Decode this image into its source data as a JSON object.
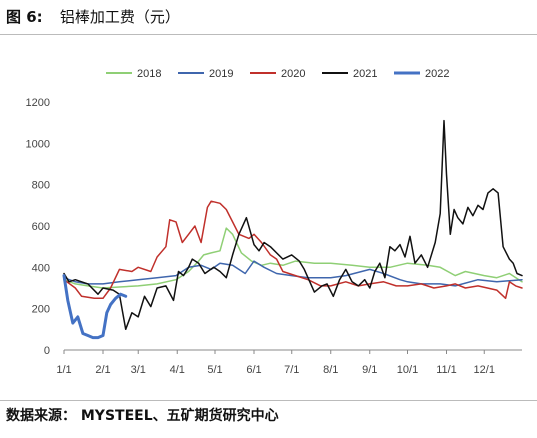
{
  "figure": {
    "label": "图 6:",
    "title": "铝棒加工费（元）",
    "source": "数据来源： MYSTEEL、五矿期货研究中心"
  },
  "chart_data": {
    "type": "line",
    "title": "铝棒加工费（元）",
    "xlabel": "",
    "ylabel": "",
    "ylim": [
      0,
      1200
    ],
    "yticks": [
      0,
      200,
      400,
      600,
      800,
      1000,
      1200
    ],
    "xlim": [
      1,
      365
    ],
    "xticks": [
      {
        "label": "1/1",
        "day": 1
      },
      {
        "label": "2/1",
        "day": 32
      },
      {
        "label": "3/1",
        "day": 60
      },
      {
        "label": "4/1",
        "day": 91
      },
      {
        "label": "5/1",
        "day": 121
      },
      {
        "label": "6/1",
        "day": 152
      },
      {
        "label": "7/1",
        "day": 182
      },
      {
        "label": "8/1",
        "day": 213
      },
      {
        "label": "9/1",
        "day": 244
      },
      {
        "label": "10/1",
        "day": 274
      },
      {
        "label": "11/1",
        "day": 305
      },
      {
        "label": "12/1",
        "day": 335
      }
    ],
    "x_unit": "day of year",
    "grid": false,
    "legend_position": "top",
    "series": [
      {
        "name": "2018",
        "color": "#8fcf75",
        "width": 1.5,
        "x": [
          1,
          10,
          20,
          32,
          45,
          60,
          75,
          90,
          100,
          108,
          112,
          118,
          125,
          130,
          135,
          142,
          150,
          158,
          165,
          175,
          185,
          200,
          213,
          230,
          244,
          260,
          274,
          290,
          300,
          312,
          320,
          335,
          345,
          355,
          365
        ],
        "y": [
          340,
          320,
          310,
          300,
          305,
          310,
          320,
          340,
          380,
          430,
          460,
          470,
          480,
          590,
          560,
          470,
          430,
          410,
          420,
          410,
          430,
          420,
          420,
          410,
          400,
          400,
          420,
          410,
          400,
          360,
          380,
          360,
          350,
          370,
          330
        ]
      },
      {
        "name": "2019",
        "color": "#3f66ad",
        "width": 1.5,
        "x": [
          1,
          10,
          20,
          32,
          45,
          60,
          75,
          90,
          100,
          110,
          118,
          125,
          135,
          145,
          152,
          160,
          170,
          182,
          195,
          213,
          225,
          244,
          255,
          268,
          274,
          285,
          300,
          312,
          330,
          345,
          365
        ],
        "y": [
          350,
          330,
          320,
          320,
          330,
          340,
          350,
          360,
          400,
          410,
          390,
          420,
          410,
          370,
          430,
          400,
          370,
          360,
          350,
          350,
          360,
          390,
          370,
          340,
          330,
          320,
          320,
          310,
          340,
          330,
          340
        ]
      },
      {
        "name": "2020",
        "color": "#c0302b",
        "width": 1.5,
        "x": [
          1,
          10,
          15,
          25,
          32,
          38,
          45,
          55,
          60,
          70,
          75,
          82,
          85,
          90,
          95,
          100,
          105,
          110,
          115,
          118,
          125,
          130,
          135,
          140,
          148,
          152,
          158,
          165,
          170,
          175,
          185,
          195,
          205,
          213,
          225,
          235,
          244,
          255,
          265,
          274,
          285,
          295,
          305,
          312,
          320,
          330,
          345,
          352,
          355,
          360,
          365
        ],
        "y": [
          340,
          300,
          260,
          250,
          250,
          300,
          390,
          380,
          400,
          380,
          450,
          500,
          630,
          620,
          520,
          560,
          600,
          520,
          690,
          720,
          710,
          680,
          620,
          560,
          540,
          560,
          520,
          460,
          440,
          380,
          360,
          340,
          310,
          310,
          330,
          310,
          320,
          330,
          310,
          310,
          320,
          300,
          310,
          320,
          300,
          310,
          290,
          250,
          330,
          310,
          300
        ]
      },
      {
        "name": "2021",
        "color": "#111111",
        "width": 1.5,
        "x": [
          1,
          5,
          10,
          20,
          28,
          32,
          40,
          45,
          50,
          55,
          60,
          65,
          70,
          75,
          82,
          88,
          92,
          96,
          100,
          103,
          108,
          113,
          120,
          125,
          130,
          135,
          140,
          146,
          152,
          156,
          160,
          165,
          170,
          175,
          182,
          188,
          192,
          200,
          206,
          210,
          215,
          220,
          225,
          230,
          235,
          240,
          244,
          248,
          252,
          256,
          260,
          264,
          268,
          272,
          276,
          280,
          285,
          290,
          296,
          300,
          303,
          305,
          308,
          311,
          314,
          318,
          322,
          326,
          330,
          334,
          338,
          342,
          346,
          350,
          355,
          358,
          361,
          365
        ],
        "y": [
          370,
          330,
          340,
          320,
          270,
          300,
          290,
          270,
          100,
          180,
          160,
          260,
          210,
          300,
          310,
          240,
          380,
          360,
          400,
          440,
          420,
          370,
          400,
          380,
          350,
          460,
          560,
          640,
          510,
          480,
          520,
          500,
          470,
          440,
          460,
          430,
          390,
          280,
          310,
          320,
          260,
          340,
          390,
          330,
          310,
          340,
          300,
          380,
          420,
          350,
          500,
          480,
          510,
          450,
          550,
          420,
          460,
          400,
          520,
          660,
          1110,
          850,
          560,
          680,
          640,
          610,
          690,
          650,
          700,
          680,
          760,
          780,
          760,
          500,
          440,
          420,
          370,
          360
        ]
      },
      {
        "name": "2022",
        "color": "#4472c4",
        "width": 3,
        "x": [
          1,
          4,
          8,
          12,
          16,
          20,
          24,
          28,
          32,
          35,
          38,
          42,
          46,
          50
        ],
        "y": [
          360,
          240,
          130,
          160,
          80,
          70,
          60,
          60,
          70,
          180,
          220,
          250,
          270,
          260
        ]
      }
    ]
  }
}
